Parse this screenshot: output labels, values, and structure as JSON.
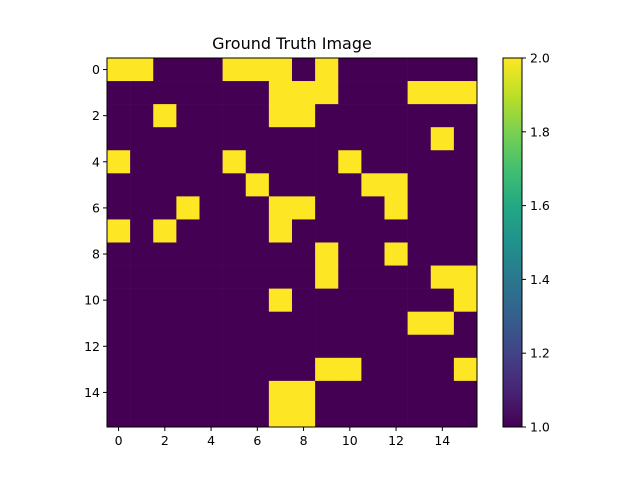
{
  "chart_data": {
    "type": "heatmap",
    "title": "Ground Truth Image",
    "xlabel": "",
    "ylabel": "",
    "rows": 16,
    "cols": 16,
    "x_ticks": [
      0,
      2,
      4,
      6,
      8,
      10,
      12,
      14
    ],
    "y_ticks": [
      0,
      2,
      4,
      6,
      8,
      10,
      12,
      14
    ],
    "value_range": [
      1.0,
      2.0
    ],
    "colorbar_ticks": [
      "1.0",
      "1.2",
      "1.4",
      "1.6",
      "1.8",
      "2.0"
    ],
    "colormap": "viridis",
    "colors": {
      "low": "#440154",
      "high": "#fde725"
    },
    "values": [
      [
        2,
        2,
        1,
        1,
        1,
        2,
        2,
        2,
        1,
        2,
        1,
        1,
        1,
        1,
        1,
        1
      ],
      [
        1,
        1,
        1,
        1,
        1,
        1,
        1,
        2,
        2,
        2,
        1,
        1,
        1,
        2,
        2,
        2
      ],
      [
        1,
        1,
        2,
        1,
        1,
        1,
        1,
        2,
        2,
        1,
        1,
        1,
        1,
        1,
        1,
        1
      ],
      [
        1,
        1,
        1,
        1,
        1,
        1,
        1,
        1,
        1,
        1,
        1,
        1,
        1,
        1,
        2,
        1
      ],
      [
        2,
        1,
        1,
        1,
        1,
        2,
        1,
        1,
        1,
        1,
        2,
        1,
        1,
        1,
        1,
        1
      ],
      [
        1,
        1,
        1,
        1,
        1,
        1,
        2,
        1,
        1,
        1,
        1,
        2,
        2,
        1,
        1,
        1
      ],
      [
        1,
        1,
        1,
        2,
        1,
        1,
        1,
        2,
        2,
        1,
        1,
        1,
        2,
        1,
        1,
        1
      ],
      [
        2,
        1,
        2,
        1,
        1,
        1,
        1,
        2,
        1,
        1,
        1,
        1,
        1,
        1,
        1,
        1
      ],
      [
        1,
        1,
        1,
        1,
        1,
        1,
        1,
        1,
        1,
        2,
        1,
        1,
        2,
        1,
        1,
        1
      ],
      [
        1,
        1,
        1,
        1,
        1,
        1,
        1,
        1,
        1,
        2,
        1,
        1,
        1,
        1,
        2,
        2
      ],
      [
        1,
        1,
        1,
        1,
        1,
        1,
        1,
        2,
        1,
        1,
        1,
        1,
        1,
        1,
        1,
        2
      ],
      [
        1,
        1,
        1,
        1,
        1,
        1,
        1,
        1,
        1,
        1,
        1,
        1,
        1,
        2,
        2,
        1
      ],
      [
        1,
        1,
        1,
        1,
        1,
        1,
        1,
        1,
        1,
        1,
        1,
        1,
        1,
        1,
        1,
        1
      ],
      [
        1,
        1,
        1,
        1,
        1,
        1,
        1,
        1,
        1,
        2,
        2,
        1,
        1,
        1,
        1,
        2
      ],
      [
        1,
        1,
        1,
        1,
        1,
        1,
        1,
        2,
        2,
        1,
        1,
        1,
        1,
        1,
        1,
        1
      ],
      [
        1,
        1,
        1,
        1,
        1,
        1,
        1,
        2,
        2,
        1,
        1,
        1,
        1,
        1,
        1,
        1
      ]
    ]
  }
}
